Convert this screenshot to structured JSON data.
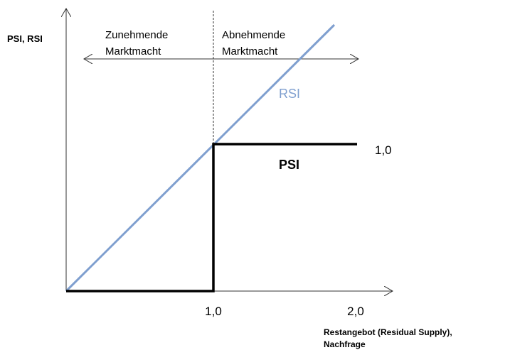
{
  "y_axis_label": "PSI, RSI",
  "left_region": [
    "Zunehmende",
    "Marktmacht"
  ],
  "right_region": [
    "Abnehmende",
    "Marktmacht"
  ],
  "rsi_label": "RSI",
  "psi_label": "PSI",
  "y_tick": "1,0",
  "x_ticks": [
    "1,0",
    "2,0"
  ],
  "x_axis_label": [
    "Restangebot (Residual Supply),",
    "Nachfrage"
  ]
}
